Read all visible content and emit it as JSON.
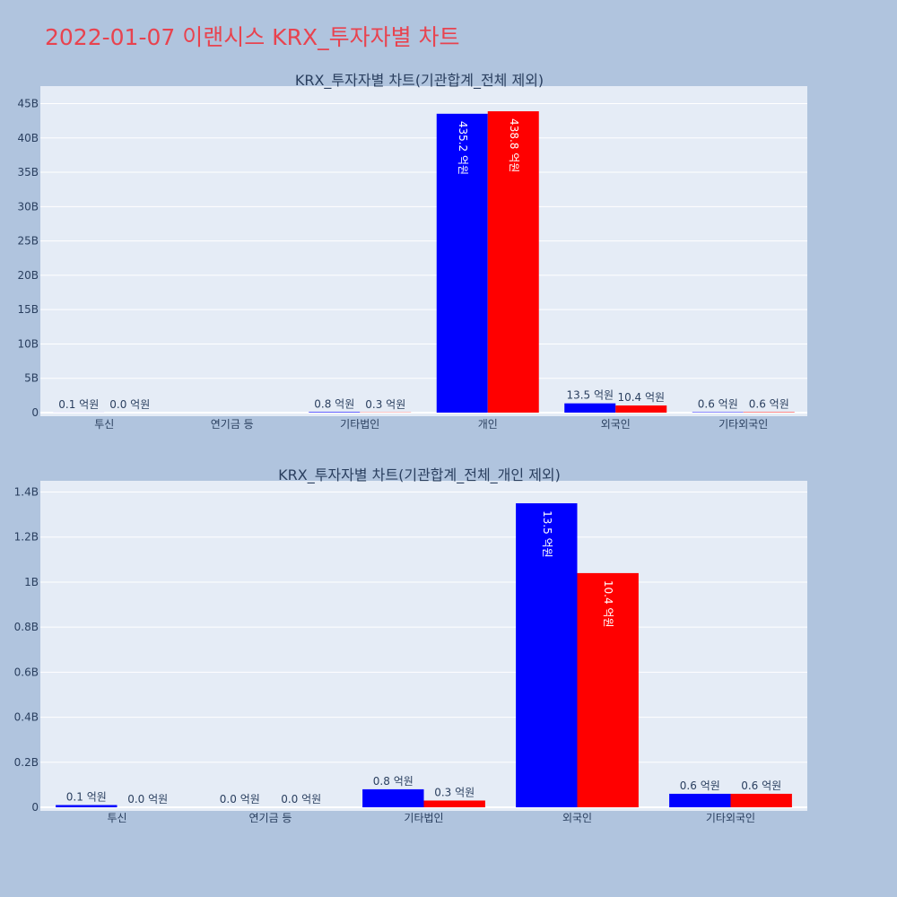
{
  "page_title": "2022-01-07 이랜시스 KRX_투자자별 차트",
  "colors": {
    "buy": "#0000ff",
    "sell": "#ff0000",
    "plot_bg": "#e5ecf6",
    "page_bg": "#b0c4de",
    "title": "#e8434f"
  },
  "chart_data": [
    {
      "type": "bar",
      "title": "KRX_투자자별 차트(기관합계_전체 제외)",
      "categories": [
        "투신",
        "연기금 등",
        "기타법인",
        "개인",
        "외국인",
        "기타외국인"
      ],
      "series": [
        {
          "color": "#0000ff",
          "values": [
            10000000,
            0,
            80000000,
            43520000000,
            1350000000,
            60000000
          ],
          "labels": [
            "0.1 억원",
            "",
            "0.8 억원",
            "435.2 억원",
            "13.5 억원",
            "0.6 억원"
          ]
        },
        {
          "color": "#ff0000",
          "values": [
            0,
            0,
            30000000,
            43880000000,
            1040000000,
            60000000
          ],
          "labels": [
            "0.0 억원",
            "",
            "0.3 억원",
            "438.8 억원",
            "10.4 억원",
            "0.6 억원"
          ]
        }
      ],
      "ylim": [
        0,
        46500000000
      ],
      "yticks": [
        0,
        5000000000,
        10000000000,
        15000000000,
        20000000000,
        25000000000,
        30000000000,
        35000000000,
        40000000000,
        45000000000
      ],
      "ytick_labels": [
        "0",
        "5B",
        "10B",
        "15B",
        "20B",
        "25B",
        "30B",
        "35B",
        "40B",
        "45B"
      ],
      "grid": true
    },
    {
      "type": "bar",
      "title": "KRX_투자자별 차트(기관합계_전체_개인 제외)",
      "categories": [
        "투신",
        "연기금 등",
        "기타법인",
        "외국인",
        "기타외국인"
      ],
      "series": [
        {
          "color": "#0000ff",
          "values": [
            10000000,
            0,
            80000000,
            1350000000,
            60000000
          ],
          "labels": [
            "0.1 억원",
            "0.0 억원",
            "0.8 억원",
            "13.5 억원",
            "0.6 억원"
          ]
        },
        {
          "color": "#ff0000",
          "values": [
            0,
            0,
            30000000,
            1040000000,
            60000000
          ],
          "labels": [
            "0.0 억원",
            "0.0 억원",
            "0.3 억원",
            "10.4 억원",
            "0.6 억원"
          ]
        }
      ],
      "ylim": [
        0,
        1430000000
      ],
      "yticks": [
        0,
        200000000,
        400000000,
        600000000,
        800000000,
        1000000000,
        1200000000,
        1400000000
      ],
      "ytick_labels": [
        "0",
        "0.2B",
        "0.4B",
        "0.6B",
        "0.8B",
        "1B",
        "1.2B",
        "1.4B"
      ],
      "grid": true
    }
  ]
}
